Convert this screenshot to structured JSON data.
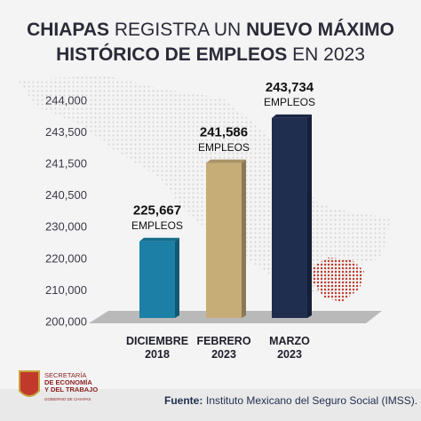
{
  "chart_data": {
    "type": "bar",
    "title": [
      {
        "text": "CHIAPAS",
        "bold": true
      },
      {
        "text": " REGISTRA UN ",
        "bold": false
      },
      {
        "text": "NUEVO MÁXIMO",
        "bold": true
      },
      {
        "text": "HISTÓRICO DE EMPLEOS",
        "bold": true
      },
      {
        "text": " EN 2023",
        "bold": false
      }
    ],
    "categories": [
      "DICIEMBRE 2018",
      "FEBRERO 2023",
      "MARZO 2023"
    ],
    "values": [
      225667,
      241586,
      243734
    ],
    "value_labels": [
      "225,667",
      "241,586",
      "243,734"
    ],
    "unit_label": "EMPLEOS",
    "colors": [
      "#1b7fa6",
      "#c6ad78",
      "#1f2d4f"
    ],
    "ylim": [
      200000,
      244000
    ],
    "yticks": [
      {
        "value": 200000,
        "label": "200,000"
      },
      {
        "value": 210000,
        "label": "210,000"
      },
      {
        "value": 220000,
        "label": "220,000"
      },
      {
        "value": 230000,
        "label": "230,000"
      },
      {
        "value": 240500,
        "label": "240,500"
      },
      {
        "value": 241500,
        "label": "241,500"
      },
      {
        "value": 243500,
        "label": "243,500"
      },
      {
        "value": 244000,
        "label": "244,000"
      }
    ],
    "source_label": "Fuente:",
    "source": "Instituto Mexicano del Seguro Social (IMSS).",
    "logo": [
      "SECRETARÍA",
      "DE ECONOMÍA",
      "Y DEL TRABAJO",
      "GOBIERNO DE CHIAPAS"
    ]
  }
}
